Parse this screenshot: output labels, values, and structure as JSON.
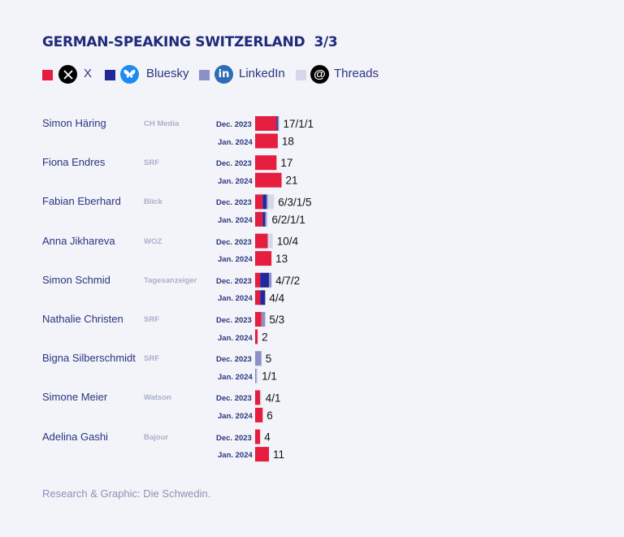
{
  "title": "GERMAN-SPEAKING SWITZERLAND  3/3",
  "legend": [
    {
      "label": "X",
      "icon": "x-logo-icon",
      "color": "#e51e3f"
    },
    {
      "label": "Bluesky",
      "icon": "bluesky-butterfly-icon",
      "color": "#22279a"
    },
    {
      "label": "LinkedIn",
      "icon": "linkedin-icon",
      "color": "#8b91c6"
    },
    {
      "label": "Threads",
      "icon": "threads-icon",
      "color": "#d4d8ea"
    }
  ],
  "credit": "Research & Graphic: Die Schwedin.",
  "chart_data": {
    "type": "bar",
    "orientation": "horizontal",
    "stacked": true,
    "title": "GERMAN-SPEAKING SWITZERLAND  3/3",
    "series_colors": {
      "X": "#e51e3f",
      "Bluesky": "#22279a",
      "LinkedIn": "#8b91c6",
      "Threads": "#d4d8ea"
    },
    "rows": [
      {
        "name": "Simon Häring",
        "outlet": "CH Media",
        "periods": [
          {
            "period": "Dec. 2023",
            "values": {
              "X": 17,
              "Bluesky": 1,
              "LinkedIn": 1,
              "Threads": 0
            },
            "label": "17/1/1"
          },
          {
            "period": "Jan. 2024",
            "values": {
              "X": 18,
              "Bluesky": 0,
              "LinkedIn": 0,
              "Threads": 0
            },
            "label": "18"
          }
        ]
      },
      {
        "name": "Fiona Endres",
        "outlet": "SRF",
        "periods": [
          {
            "period": "Dec. 2023",
            "values": {
              "X": 17,
              "Bluesky": 0,
              "LinkedIn": 0,
              "Threads": 0
            },
            "label": "17"
          },
          {
            "period": "Jan. 2024",
            "values": {
              "X": 21,
              "Bluesky": 0,
              "LinkedIn": 0,
              "Threads": 0
            },
            "label": "21"
          }
        ]
      },
      {
        "name": "Fabian Eberhard",
        "outlet": "Blick",
        "periods": [
          {
            "period": "Dec. 2023",
            "values": {
              "X": 6,
              "Bluesky": 3,
              "LinkedIn": 1,
              "Threads": 5
            },
            "label": "6/3/1/5"
          },
          {
            "period": "Jan. 2024",
            "values": {
              "X": 6,
              "Bluesky": 2,
              "LinkedIn": 1,
              "Threads": 1
            },
            "label": "6/2/1/1"
          }
        ]
      },
      {
        "name": "Anna Jikhareva",
        "outlet": "WOZ",
        "periods": [
          {
            "period": "Dec. 2023",
            "values": {
              "X": 10,
              "Bluesky": 0,
              "LinkedIn": 0,
              "Threads": 4
            },
            "label": "10/4"
          },
          {
            "period": "Jan. 2024",
            "values": {
              "X": 13,
              "Bluesky": 0,
              "LinkedIn": 0,
              "Threads": 0
            },
            "label": "13"
          }
        ]
      },
      {
        "name": "Simon Schmid",
        "outlet": "Tagesanzeiger",
        "periods": [
          {
            "period": "Dec. 2023",
            "values": {
              "X": 4,
              "Bluesky": 7,
              "LinkedIn": 2,
              "Threads": 0
            },
            "label": "4/7/2"
          },
          {
            "period": "Jan. 2024",
            "values": {
              "X": 4,
              "Bluesky": 4,
              "LinkedIn": 0,
              "Threads": 0
            },
            "label": "4/4"
          }
        ]
      },
      {
        "name": "Nathalie Christen",
        "outlet": "SRF",
        "periods": [
          {
            "period": "Dec. 2023",
            "values": {
              "X": 5,
              "Bluesky": 0,
              "LinkedIn": 3,
              "Threads": 0
            },
            "label": "5/3"
          },
          {
            "period": "Jan. 2024",
            "values": {
              "X": 2,
              "Bluesky": 0,
              "LinkedIn": 0,
              "Threads": 0
            },
            "label": "2"
          }
        ]
      },
      {
        "name": "Bigna Silberschmidt",
        "outlet": "SRF",
        "periods": [
          {
            "period": "Dec. 2023",
            "values": {
              "X": 0,
              "Bluesky": 0,
              "LinkedIn": 5,
              "Threads": 0
            },
            "label": "5"
          },
          {
            "period": "Jan. 2024",
            "values": {
              "X": 0,
              "Bluesky": 0,
              "LinkedIn": 1,
              "Threads": 1
            },
            "label": "1/1"
          }
        ]
      },
      {
        "name": "Simone Meier",
        "outlet": "Watson",
        "periods": [
          {
            "period": "Dec. 2023",
            "values": {
              "X": 4,
              "Bluesky": 0,
              "LinkedIn": 0,
              "Threads": 1
            },
            "label": "4/1"
          },
          {
            "period": "Jan. 2024",
            "values": {
              "X": 6,
              "Bluesky": 0,
              "LinkedIn": 0,
              "Threads": 0
            },
            "label": "6"
          }
        ]
      },
      {
        "name": "Adelina Gashi",
        "outlet": "Bajour",
        "periods": [
          {
            "period": "Dec. 2023",
            "values": {
              "X": 4,
              "Bluesky": 0,
              "LinkedIn": 0,
              "Threads": 0
            },
            "label": "4"
          },
          {
            "period": "Jan. 2024",
            "values": {
              "X": 11,
              "Bluesky": 0,
              "LinkedIn": 0,
              "Threads": 0
            },
            "label": "11"
          }
        ]
      }
    ]
  }
}
